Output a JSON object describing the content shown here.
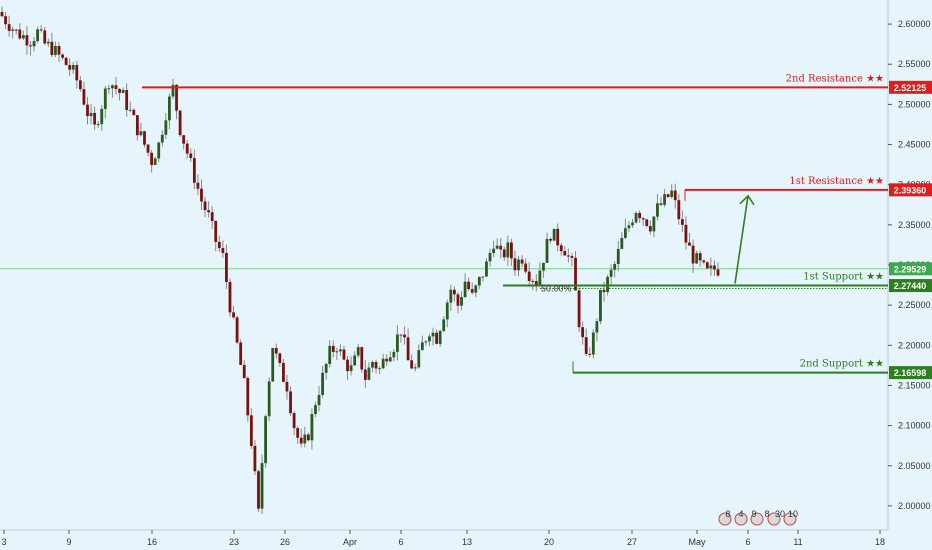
{
  "chart_data": {
    "type": "candlestick",
    "title": "",
    "xlabel": "",
    "ylabel": "",
    "ylim": [
      1.97,
      2.63
    ],
    "y_ticks": [
      "2.60000",
      "2.55000",
      "2.50000",
      "2.45000",
      "2.40000",
      "2.35000",
      "2.30000",
      "2.25000",
      "2.20000",
      "2.15000",
      "2.10000",
      "2.05000",
      "2.00000"
    ],
    "x_ticks": [
      "3",
      "9",
      "16",
      "23",
      "26",
      "Apr",
      "6",
      "13",
      "20",
      "27",
      "May",
      "6",
      "11",
      "18"
    ],
    "current_price": "2.29529",
    "levels": [
      {
        "name": "2nd Resistance ★★",
        "value": 2.52125,
        "tag": "2.52125",
        "color": "#e21b1b"
      },
      {
        "name": "1st Resistance ★★",
        "value": 2.3936,
        "tag": "2.39360",
        "color": "#e21b1b"
      },
      {
        "name": "1st Support ★★",
        "value": 2.2744,
        "tag": "2.27440",
        "color": "#2e7d1f"
      },
      {
        "name": "2nd Support ★★",
        "value": 2.16598,
        "tag": "2.16598",
        "color": "#2e7d1f"
      }
    ],
    "fib_label": "50.00%",
    "close_path": [
      2.61,
      2.6,
      2.59,
      2.585,
      2.58,
      2.59,
      2.575,
      2.57,
      2.56,
      2.55,
      2.54,
      2.52,
      2.49,
      2.47,
      2.5,
      2.53,
      2.52,
      2.51,
      2.49,
      2.47,
      2.45,
      2.43,
      2.45,
      2.49,
      2.52,
      2.47,
      2.44,
      2.41,
      2.38,
      2.36,
      2.33,
      2.31,
      2.25,
      2.2,
      2.15,
      2.08,
      1.99,
      2.12,
      2.2,
      2.17,
      2.15,
      2.1,
      2.07,
      2.09,
      2.13,
      2.16,
      2.19,
      2.2,
      2.18,
      2.17,
      2.19,
      2.16,
      2.18,
      2.17,
      2.19,
      2.2,
      2.22,
      2.18,
      2.17,
      2.2,
      2.22,
      2.21,
      2.24,
      2.27,
      2.25,
      2.28,
      2.26,
      2.28,
      2.3,
      2.33,
      2.31,
      2.32,
      2.3,
      2.31,
      2.29,
      2.28,
      2.31,
      2.34,
      2.33,
      2.32,
      2.3,
      2.23,
      2.18,
      2.21,
      2.26,
      2.28,
      2.3,
      2.33,
      2.35,
      2.37,
      2.36,
      2.35,
      2.37,
      2.38,
      2.39,
      2.36,
      2.33,
      2.31,
      2.3,
      2.29,
      2.295
    ],
    "colors": {
      "up": "#2a5a22",
      "down": "#7a1010",
      "wick": "#888888",
      "arrow": "#2e7d1f",
      "background": "#e6f5fb"
    }
  },
  "overlay": {
    "event_icons": [
      "8",
      "4",
      "9",
      "8",
      "30",
      "10"
    ]
  }
}
